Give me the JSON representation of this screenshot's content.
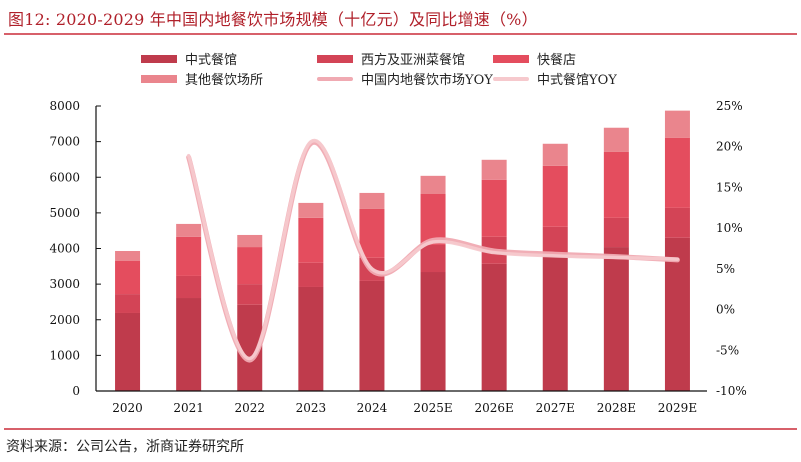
{
  "header": {
    "title": "图12:  2020-2029 年中国内地餐饮市场规模（十亿元）及同比增速（%）"
  },
  "footer": {
    "source": "资料来源：公司公告，浙商证券研究所"
  },
  "legend": [
    {
      "label": "中式餐馆",
      "type": "bar",
      "color": "#bf3b4c"
    },
    {
      "label": "西方及亚洲菜餐馆",
      "type": "bar",
      "color": "#d34456"
    },
    {
      "label": "快餐店",
      "type": "bar",
      "color": "#e44d5e"
    },
    {
      "label": "其他餐饮场所",
      "type": "bar",
      "color": "#ea858d"
    },
    {
      "label": "中国内地餐饮市场YOY",
      "type": "line",
      "color": "#f0aab2"
    },
    {
      "label": "中式餐馆YOY",
      "type": "line",
      "color": "#f6c9cd"
    }
  ],
  "chart_data": {
    "type": "bar",
    "stacked": true,
    "title": "2020-2029 年中国内地餐饮市场规模（十亿元）及同比增速（%）",
    "xlabel": "",
    "ylabel": "",
    "categories": [
      "2020",
      "2021",
      "2022",
      "2023",
      "2024",
      "2025E",
      "2026E",
      "2027E",
      "2028E",
      "2029E"
    ],
    "series": [
      {
        "name": "中式餐馆",
        "axis": "left",
        "type": "bar",
        "color": "#bf3b4c",
        "values": [
          2190,
          2610,
          2420,
          2920,
          3090,
          3340,
          3570,
          3790,
          4040,
          4300
        ]
      },
      {
        "name": "西方及亚洲菜餐馆",
        "axis": "left",
        "type": "bar",
        "color": "#d34456",
        "values": [
          530,
          620,
          580,
          680,
          650,
          760,
          760,
          820,
          820,
          840
        ]
      },
      {
        "name": "快餐店",
        "axis": "left",
        "type": "bar",
        "color": "#e44d5e",
        "values": [
          930,
          1100,
          1040,
          1260,
          1370,
          1430,
          1600,
          1710,
          1850,
          1970
        ]
      },
      {
        "name": "其他餐饮场所",
        "axis": "left",
        "type": "bar",
        "color": "#ea858d",
        "values": [
          280,
          360,
          340,
          420,
          450,
          510,
          560,
          620,
          680,
          760
        ]
      },
      {
        "name": "中国内地餐饮市场YOY",
        "axis": "right",
        "type": "line",
        "color": "#f0aab2",
        "values": [
          null,
          18.7,
          -6.2,
          20.4,
          4.8,
          8.5,
          7.2,
          6.8,
          6.5,
          6.1
        ]
      },
      {
        "name": "中式餐馆YOY",
        "axis": "right",
        "type": "line",
        "color": "#f6c9cd",
        "values": [
          null,
          18.9,
          -6.0,
          20.6,
          5.0,
          8.3,
          7.0,
          6.6,
          6.4,
          6.2
        ]
      }
    ],
    "y_left": {
      "ylim": [
        0,
        8000
      ],
      "ticks": [
        "0",
        "1000",
        "2000",
        "3000",
        "4000",
        "5000",
        "6000",
        "7000",
        "8000"
      ]
    },
    "y_right": {
      "ylim": [
        -10,
        25
      ],
      "ticks": [
        "-10%",
        "-5%",
        "0%",
        "5%",
        "10%",
        "15%",
        "20%",
        "25%"
      ]
    },
    "grid": false,
    "legend_position": "top"
  }
}
